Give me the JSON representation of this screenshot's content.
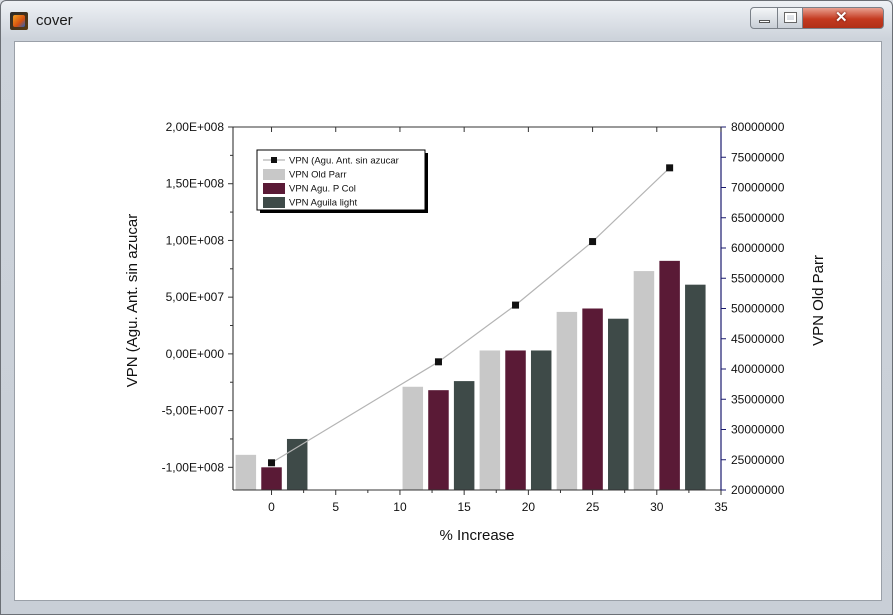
{
  "window": {
    "title": "cover",
    "icons": {
      "app": "matlab-figure-icon",
      "minimize": "minimize-icon",
      "maximize": "maximize-icon",
      "close": "close-icon"
    }
  },
  "colors": {
    "line": "#111111",
    "connector": "#b4b4b4",
    "old_parr": "#c8c8c8",
    "agu_p_col": "#5a1a36",
    "aguila_light": "#3e4a48",
    "left_axis": "#222222",
    "right_axis": "#1a1a6e"
  },
  "chart_data": {
    "type": "bar",
    "xlabel": "% Increase",
    "ylabel": "VPN (Agu. Ant. sin azucar",
    "y2label": "VPN Old Parr",
    "xlim": [
      -3,
      35
    ],
    "ylim": [
      -120000000,
      200000000
    ],
    "y2lim": [
      20000000,
      80000000
    ],
    "x_ticks": [
      "0",
      "5",
      "10",
      "15",
      "20",
      "25",
      "30",
      "35"
    ],
    "y_ticks": [
      "-1,00E+008",
      "-5,00E+007",
      "0,00E+000",
      "5,00E+007",
      "1,00E+008",
      "1,50E+008",
      "2,00E+008"
    ],
    "y2_ticks": [
      "20000000",
      "25000000",
      "30000000",
      "35000000",
      "40000000",
      "45000000",
      "50000000",
      "55000000",
      "60000000",
      "65000000",
      "70000000",
      "75000000",
      "80000000"
    ],
    "legend_position": "top-left",
    "legend": [
      "VPN (Agu. Ant. sin azucar",
      "VPN Old Parr",
      "VPN Agu. P Col",
      "VPN Aguila light"
    ],
    "line_series": {
      "name": "VPN (Agu. Ant. sin azucar",
      "axis": "left",
      "x": [
        0,
        13,
        19,
        25,
        31
      ],
      "y": [
        -96000000,
        -7000000,
        43000000,
        99000000,
        164000000
      ]
    },
    "bar_series": [
      {
        "name": "VPN Old Parr",
        "axis": "left",
        "x": [
          -2,
          11,
          17,
          23,
          29
        ],
        "values": [
          -89000000,
          -29000000,
          3000000,
          37000000,
          73000000
        ]
      },
      {
        "name": "VPN Agu. P Col",
        "axis": "left",
        "x": [
          0,
          13,
          19,
          25,
          31
        ],
        "values": [
          -100000000,
          -32000000,
          3000000,
          40000000,
          82000000
        ]
      },
      {
        "name": "VPN Aguila light",
        "axis": "left",
        "x": [
          2,
          15,
          21,
          27,
          33
        ],
        "values": [
          -75000000,
          -24000000,
          3000000,
          31000000,
          61000000
        ]
      }
    ]
  }
}
